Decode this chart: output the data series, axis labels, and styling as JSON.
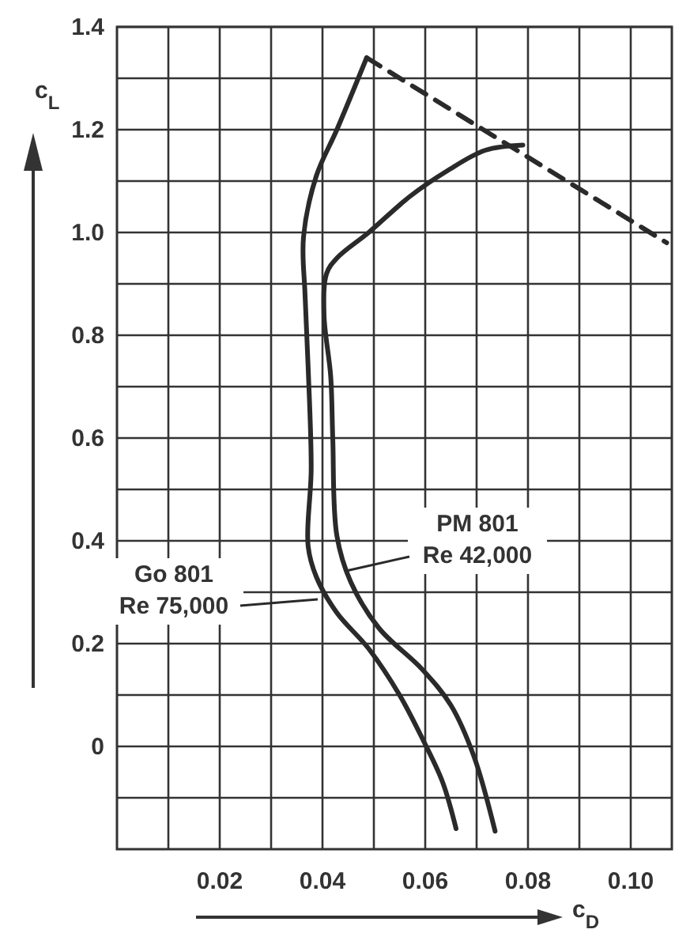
{
  "chart_data": {
    "type": "line",
    "xlabel": "c$_{D}$",
    "ylabel": "c$_{L}$",
    "xlim": [
      0,
      0.108
    ],
    "ylim": [
      -0.2,
      1.4
    ],
    "xticks": [
      {
        "value": 0.01,
        "label": null
      },
      0.02,
      {
        "value": 0.03,
        "label": null
      },
      0.04,
      {
        "value": 0.05,
        "label": null
      },
      0.06,
      {
        "value": 0.07,
        "label": null
      },
      0.08,
      {
        "value": 0.09,
        "label": null
      },
      {
        "value": 0.1,
        "label": "0.10"
      }
    ],
    "yticks": [
      {
        "value": -0.1,
        "label": null
      },
      0,
      {
        "value": 0.1,
        "label": null
      },
      0.2,
      {
        "value": 0.3,
        "label": null
      },
      0.4,
      {
        "value": 0.5,
        "label": null
      },
      0.6,
      {
        "value": 0.7,
        "label": null
      },
      0.8,
      {
        "value": 0.9,
        "label": null
      },
      {
        "value": 1.0,
        "label": "1.0"
      },
      {
        "value": 1.1,
        "label": null
      },
      1.2,
      {
        "value": 1.3,
        "label": null
      },
      1.4
    ],
    "grid": true,
    "marker": "none",
    "series": [
      {
        "name": "Go 801\nRe 75,000",
        "color": "#2a2a2a",
        "line_style": "solid",
        "x": [
          0.066,
          0.0634,
          0.0597,
          0.055,
          0.049,
          0.0428,
          0.0388,
          0.0372,
          0.0378,
          0.0372,
          0.0366,
          0.0363,
          0.0388,
          0.0428,
          0.0486
        ],
        "values": [
          -0.16,
          -0.07,
          0.01,
          0.1,
          0.19,
          0.26,
          0.33,
          0.39,
          0.54,
          0.74,
          0.88,
          0.99,
          1.11,
          1.2,
          1.34
        ]
      },
      {
        "name": "PM 801\nRe 42,000",
        "color": "#2a2a2a",
        "line_style": "solid",
        "x": [
          0.0736,
          0.0695,
          0.065,
          0.0594,
          0.051,
          0.0455,
          0.0428,
          0.042,
          0.0416,
          0.0403,
          0.0408,
          0.0428,
          0.049,
          0.057,
          0.0643,
          0.0717,
          0.079
        ],
        "values": [
          -0.165,
          -0.02,
          0.08,
          0.15,
          0.23,
          0.32,
          0.41,
          0.6,
          0.72,
          0.84,
          0.92,
          0.95,
          1.0,
          1.07,
          1.12,
          1.16,
          1.17
        ]
      },
      {
        "color": "#2a2a2a",
        "line_style": "dashed",
        "x": [
          0.0486,
          0.107
        ],
        "values": [
          1.34,
          0.98
        ]
      }
    ]
  }
}
